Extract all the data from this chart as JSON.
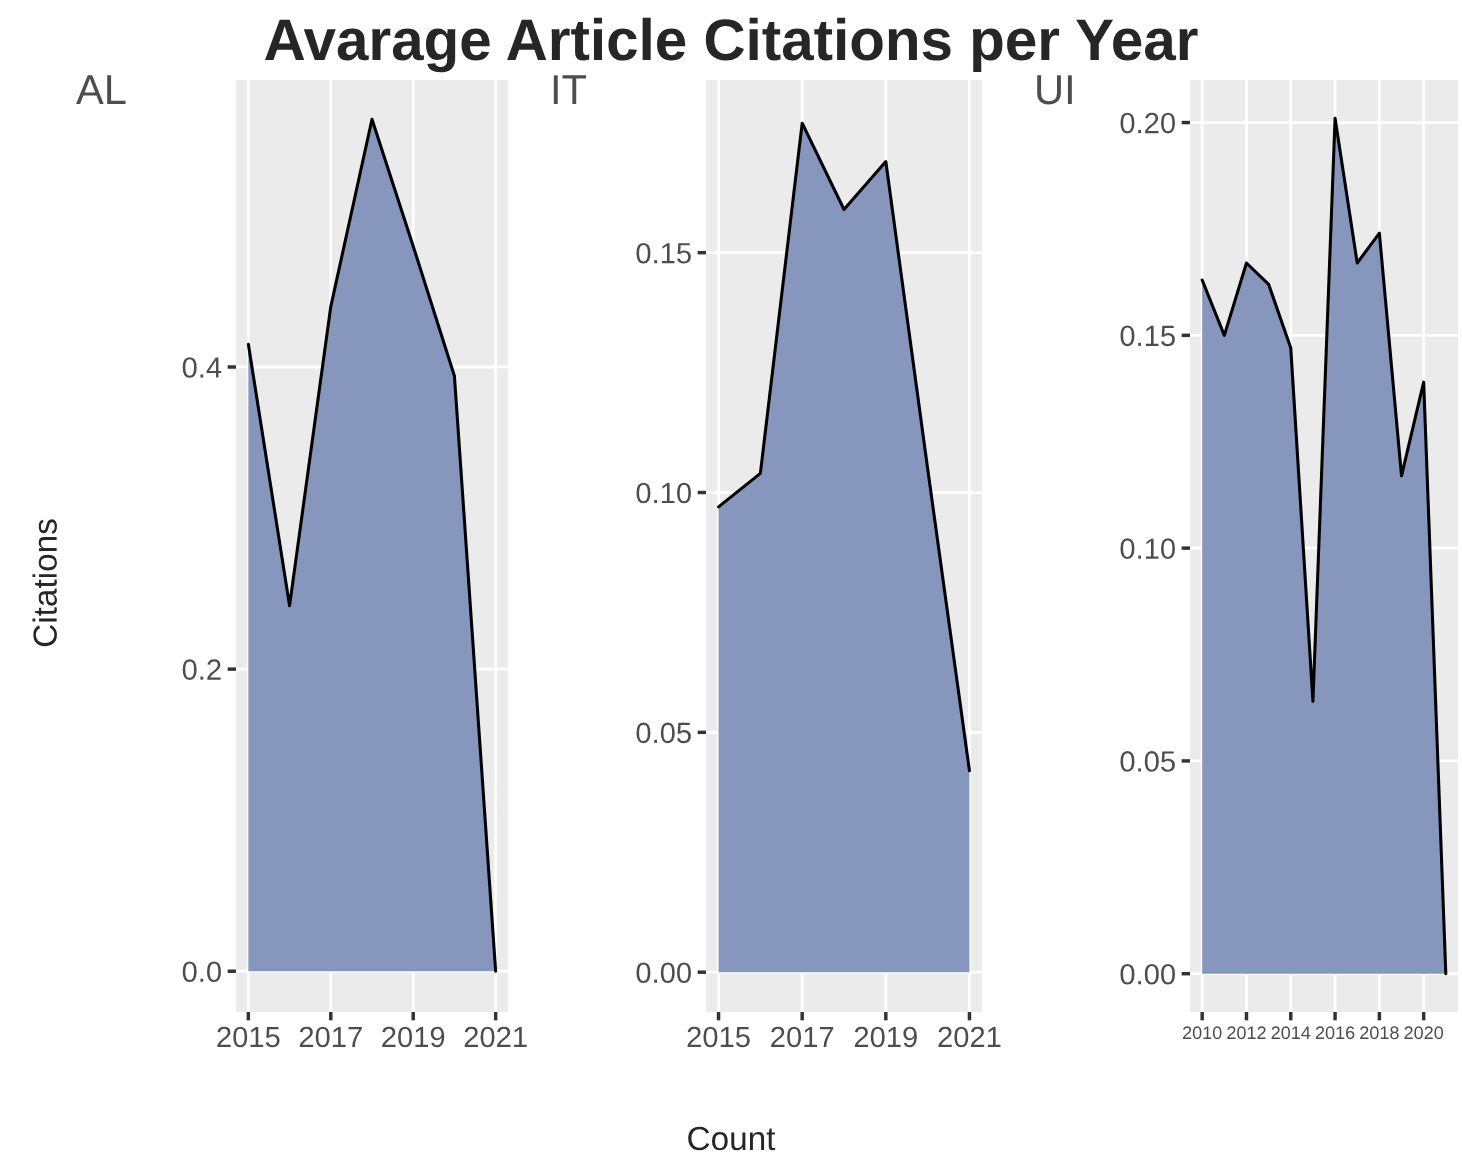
{
  "chart_data": [
    {
      "type": "area",
      "title": "Avarage Article Citations per Year",
      "subtitle": "AL",
      "ylabel": "Citations",
      "x": [
        2015,
        2016,
        2017,
        2018,
        2019,
        2020,
        2021
      ],
      "series": [
        {
          "color": "#8696bd",
          "values": [
            0.415,
            0.242,
            0.44,
            0.564,
            0.48,
            0.394,
            0.0
          ]
        }
      ],
      "xlim": [
        2014.7,
        2021.3
      ],
      "ylim": [
        -0.027,
        0.59
      ],
      "xticks": [
        2015,
        2017,
        2019,
        2021
      ],
      "yticks": [
        {
          "value": 0,
          "label": "0.0"
        },
        0.2,
        0.4
      ],
      "grid": true
    },
    {
      "type": "area",
      "subtitle": "IT",
      "xlabel": "Count",
      "x": [
        2015,
        2016,
        2017,
        2018,
        2019,
        2020,
        2021
      ],
      "series": [
        {
          "color": "#8696bd",
          "values": [
            0.097,
            0.104,
            0.177,
            0.159,
            0.169,
            0.105,
            0.042
          ]
        }
      ],
      "xlim": [
        2014.7,
        2021.3
      ],
      "ylim": [
        -0.0083,
        0.186
      ],
      "xticks": [
        2015,
        2017,
        2019,
        2021
      ],
      "yticks": [
        {
          "value": 0,
          "label": "0.00"
        },
        0.05,
        {
          "value": 0.1,
          "label": "0.10"
        },
        0.15
      ],
      "grid": true
    },
    {
      "type": "area",
      "subtitle": "UI",
      "x": [
        2010,
        2011,
        2012,
        2013,
        2014,
        2015,
        2016,
        2017,
        2018,
        2019,
        2020,
        2021
      ],
      "series": [
        {
          "color": "#8696bd",
          "values": [
            0.163,
            0.15,
            0.167,
            0.162,
            0.147,
            0.064,
            0.201,
            0.167,
            0.174,
            0.117,
            0.139,
            0.0
          ]
        }
      ],
      "xlim": [
        2009.45,
        2021.55
      ],
      "ylim": [
        -0.009,
        0.21
      ],
      "xticks": [
        2010,
        2012,
        2014,
        2016,
        2018,
        2020
      ],
      "yticks": [
        {
          "value": 0,
          "label": "0.00"
        },
        0.05,
        {
          "value": 0.1,
          "label": "0.10"
        },
        0.15,
        {
          "value": 0.2,
          "label": "0.20"
        }
      ],
      "grid": true
    }
  ]
}
